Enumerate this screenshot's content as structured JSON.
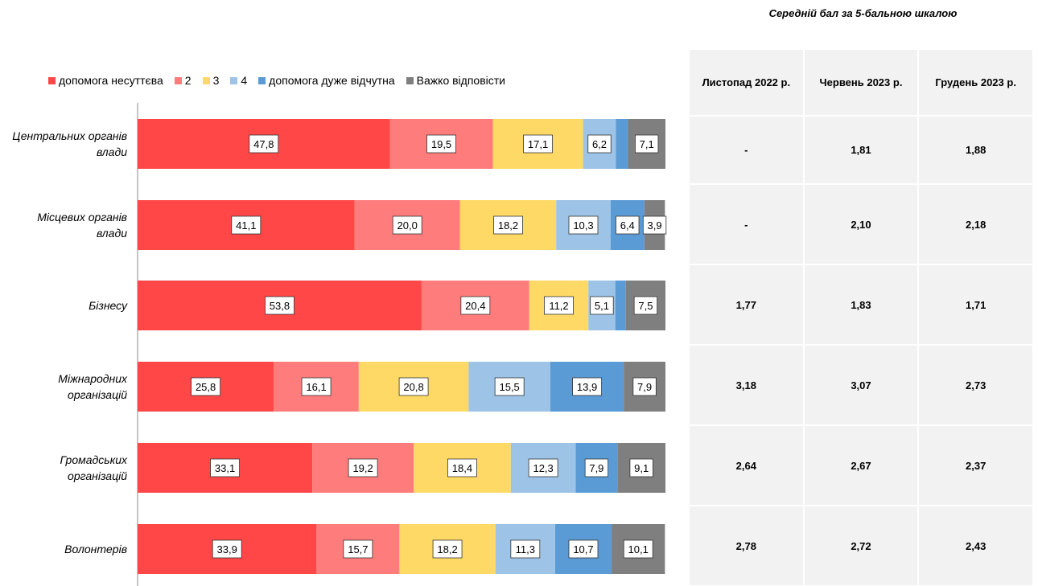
{
  "chart_data": {
    "type": "stacked-bar-horizontal",
    "categories": [
      "Центральних органів\nвлади",
      "Місцевих органів\nвлади",
      "Бізнесу",
      "Міжнародних\nорганізацій",
      "Громадських\nорганізацій",
      "Волонтерів"
    ],
    "xlim": [
      0,
      100
    ],
    "legend": "top",
    "series": [
      {
        "name": "допомога несуттєва",
        "color": "#ff4747",
        "values": [
          47.8,
          41.1,
          53.8,
          25.8,
          33.1,
          33.9
        ],
        "value_labels": [
          "47,8",
          "41,1",
          "53,8",
          "25,8",
          "33,1",
          "33,9"
        ]
      },
      {
        "name": "2",
        "color": "#ff7c7c",
        "values": [
          19.5,
          20.0,
          20.4,
          16.1,
          19.2,
          15.7
        ],
        "value_labels": [
          "19,5",
          "20,0",
          "20,4",
          "16,1",
          "19,2",
          "15,7"
        ]
      },
      {
        "name": "3",
        "color": "#ffd966",
        "values": [
          17.1,
          18.2,
          11.2,
          20.8,
          18.4,
          18.2
        ],
        "value_labels": [
          "17,1",
          "18,2",
          "11,2",
          "20,8",
          "18,4",
          "18,2"
        ]
      },
      {
        "name": "4",
        "color": "#9dc3e6",
        "values": [
          6.2,
          10.3,
          5.1,
          15.5,
          12.3,
          11.3
        ],
        "value_labels": [
          "6,2",
          "10,3",
          "5,1",
          "15,5",
          "12,3",
          "11,3"
        ]
      },
      {
        "name": "допомога дуже відчутна",
        "color": "#5b9bd5",
        "values": [
          2.3,
          6.4,
          2.0,
          13.9,
          7.9,
          10.7
        ],
        "value_labels": [
          null,
          "6,4",
          null,
          "13,9",
          "7,9",
          "10,7"
        ]
      },
      {
        "name": "Важко відповісти",
        "color": "#7f7f7f",
        "values": [
          7.1,
          3.9,
          7.5,
          7.9,
          9.1,
          10.1
        ],
        "value_labels": [
          "7,1",
          "3,9",
          "7,5",
          "7,9",
          "9,1",
          "10,1"
        ]
      }
    ]
  },
  "table": {
    "title": "Середній бал за 5-бальною шкалою",
    "columns": [
      "Листопад 2022 р.",
      "Червень 2023 р.",
      "Грудень 2023 р."
    ],
    "rows": [
      [
        "-",
        "1,81",
        "1,88"
      ],
      [
        "-",
        "2,10",
        "2,18"
      ],
      [
        "1,77",
        "1,83",
        "1,71"
      ],
      [
        "3,18",
        "3,07",
        "2,73"
      ],
      [
        "2,64",
        "2,67",
        "2,37"
      ],
      [
        "2,78",
        "2,72",
        "2,43"
      ]
    ]
  }
}
